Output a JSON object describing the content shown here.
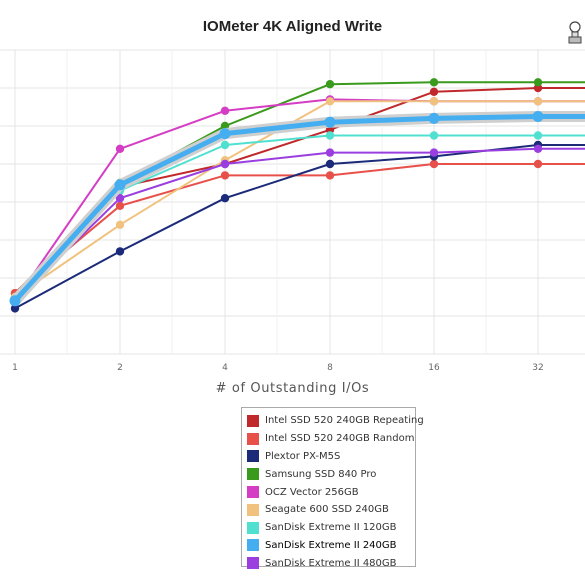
{
  "chart_data": {
    "type": "line",
    "title": "IOMeter 4K Aligned Write",
    "xlabel": "# of Outstanding I/Os",
    "ylabel": "",
    "x": [
      1,
      2,
      4,
      8,
      16,
      32
    ],
    "x_tick_labels": [
      "1",
      "2",
      "4",
      "8",
      "16",
      "32"
    ],
    "grid": true,
    "legend_position": "bottom-center",
    "series": [
      {
        "name": "Intel SSD 520 240GB Repeating",
        "color": "#c0282b",
        "values": [
          1.6,
          4.4,
          5.0,
          5.9,
          6.9,
          7.0
        ]
      },
      {
        "name": "Intel SSD 520 240GB Random",
        "color": "#e8504a",
        "values": [
          1.6,
          3.9,
          4.7,
          4.7,
          5.0,
          5.0
        ]
      },
      {
        "name": "Plextor PX-M5S",
        "color": "#1c2a7a",
        "values": [
          1.2,
          2.7,
          4.1,
          5.0,
          5.2,
          5.5
        ]
      },
      {
        "name": "Samsung SSD 840 Pro",
        "color": "#3a9a1c",
        "values": [
          1.5,
          4.5,
          6.0,
          7.1,
          7.15,
          7.15
        ]
      },
      {
        "name": "OCZ Vector 256GB",
        "color": "#d43dc4",
        "values": [
          1.4,
          5.4,
          6.4,
          6.7,
          6.65,
          6.65
        ]
      },
      {
        "name": "Seagate 600 SSD 240GB",
        "color": "#f0c27e",
        "values": [
          1.5,
          3.4,
          5.1,
          6.65,
          6.65,
          6.65
        ]
      },
      {
        "name": "SanDisk Extreme II 120GB",
        "color": "#4fe0d0",
        "values": [
          1.4,
          4.3,
          5.5,
          5.75,
          5.75,
          5.75
        ]
      },
      {
        "name": "SanDisk Extreme II 240GB",
        "color": "#45aef0",
        "values": [
          1.4,
          4.45,
          5.8,
          6.1,
          6.2,
          6.25
        ]
      },
      {
        "name": "SanDisk Extreme II 480GB",
        "color": "#9a3ee0",
        "values": [
          1.4,
          4.1,
          5.0,
          5.3,
          5.3,
          5.4
        ]
      }
    ],
    "highlight_series": "SanDisk Extreme II 240GB"
  }
}
